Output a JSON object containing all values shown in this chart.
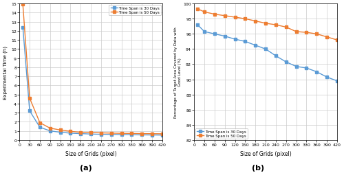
{
  "x_ticks": [
    0,
    30,
    60,
    90,
    120,
    150,
    180,
    210,
    240,
    270,
    300,
    330,
    360,
    390,
    420
  ],
  "x_data": [
    10,
    30,
    60,
    90,
    120,
    150,
    180,
    210,
    240,
    270,
    300,
    330,
    360,
    390,
    420
  ],
  "a_30days": [
    12.4,
    3.2,
    1.4,
    1.0,
    0.85,
    0.75,
    0.7,
    0.65,
    0.62,
    0.6,
    0.58,
    0.57,
    0.56,
    0.55,
    0.54
  ],
  "a_50days": [
    14.9,
    4.6,
    1.9,
    1.3,
    1.1,
    0.95,
    0.85,
    0.82,
    0.78,
    0.75,
    0.73,
    0.72,
    0.7,
    0.69,
    0.68
  ],
  "b_30days": [
    97.2,
    96.3,
    96.0,
    95.7,
    95.3,
    95.0,
    94.5,
    94.0,
    93.1,
    92.3,
    91.7,
    91.5,
    91.0,
    90.3,
    89.8
  ],
  "b_50days": [
    99.3,
    98.9,
    98.6,
    98.4,
    98.2,
    98.0,
    97.7,
    97.4,
    97.2,
    96.9,
    96.3,
    96.2,
    96.0,
    95.6,
    95.2
  ],
  "color_30": "#5B9BD5",
  "color_50": "#ED7D31",
  "xlabel": "Size of Grids (pixel)",
  "ylabel_a": "Experimental Time (h)",
  "ylabel_b": "Percentage of Target Area Covered by Data with\nGood Level (%)",
  "label_30": "Time Span is 30 Days",
  "label_50": "Time Span is 50 Days",
  "title_a": "(a)",
  "title_b": "(b)",
  "ylim_a": [
    0,
    15
  ],
  "ylim_b": [
    82,
    100
  ],
  "yticks_a": [
    0,
    1,
    2,
    3,
    4,
    5,
    6,
    7,
    8,
    9,
    10,
    11,
    12,
    13,
    14,
    15
  ],
  "yticks_b": [
    82,
    84,
    86,
    88,
    90,
    92,
    94,
    96,
    98,
    100
  ],
  "grid_color": "#CCCCCC",
  "bg_color": "#FFFFFF",
  "marker": "s"
}
